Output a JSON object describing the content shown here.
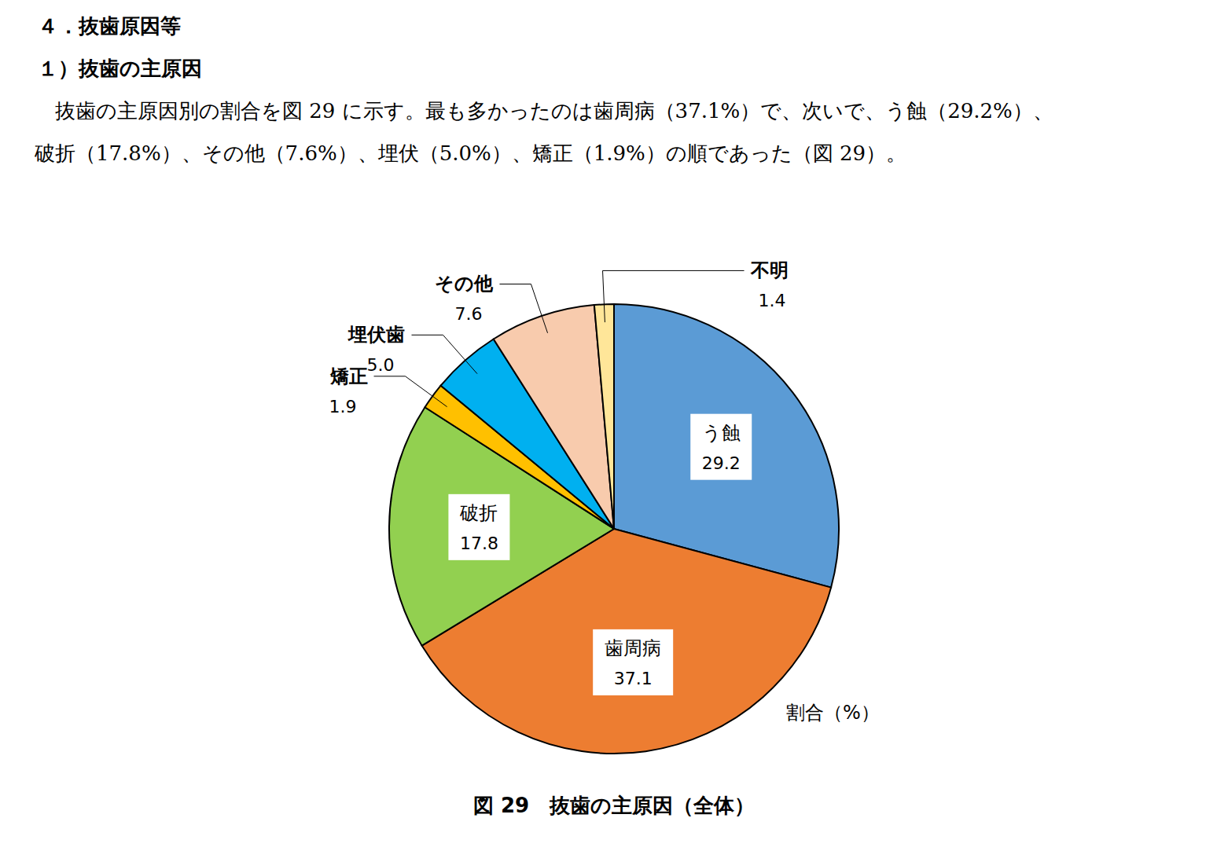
{
  "heading": "４．抜歯原因等",
  "subheading": "１）抜歯の主原因",
  "text": [
    "　抜歯の主原因別の割合を図 29 に示す。最も多かったのは歯周病（37.1%）で、次いで、う蝕（29.2%）、",
    "破折（17.8%）、その他（7.6%）、埋伏（5.0%）、矯正（1.9%）の順であった（図 29）。"
  ],
  "chart_data": {
    "type": "pie",
    "title": "図 29　抜歯の主原因（全体）",
    "annotations": [
      "割合（%）"
    ],
    "categories": [
      "う蝕",
      "歯周病",
      "破折",
      "矯正",
      "埋伏歯",
      "その他",
      "不明"
    ],
    "values": [
      29.2,
      37.1,
      17.8,
      1.9,
      5.0,
      7.6,
      1.4
    ],
    "value_labels": [
      "29.2",
      "37.1",
      "17.8",
      "1.9",
      "5.0",
      "7.6",
      "1.4"
    ],
    "colors": [
      "#5b9bd5",
      "#ed7d31",
      "#92d050",
      "#ffc000",
      "#00b0f0",
      "#f8cbad",
      "#ffe699"
    ],
    "data_labels": true
  }
}
